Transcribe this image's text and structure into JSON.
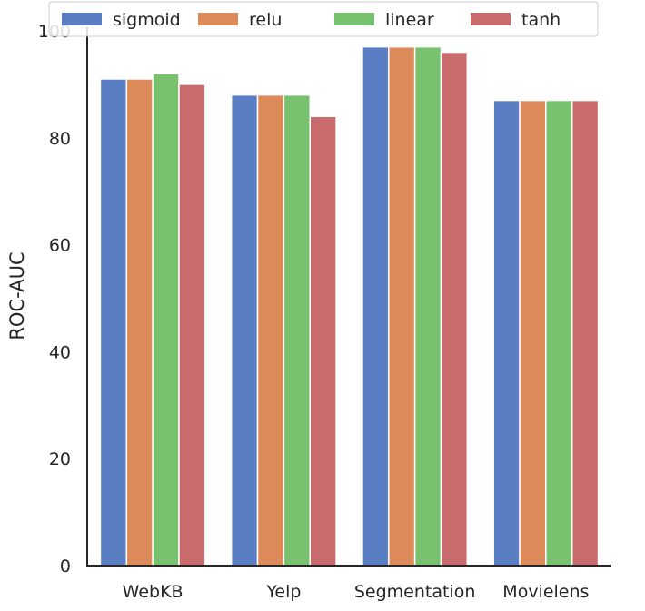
{
  "chart_data": {
    "type": "bar",
    "title": "",
    "xlabel": "",
    "ylabel": "ROC-AUC",
    "ylim": [
      0,
      100
    ],
    "yticks": [
      0,
      20,
      40,
      60,
      80,
      100
    ],
    "categories": [
      "WebKB",
      "Yelp",
      "Segmentation",
      "Movielens"
    ],
    "series": [
      {
        "name": "sigmoid",
        "color": "#5a7ec4",
        "values": [
          91,
          88,
          97,
          87
        ]
      },
      {
        "name": "relu",
        "color": "#dc8a5a",
        "values": [
          91,
          88,
          97,
          87
        ]
      },
      {
        "name": "linear",
        "color": "#77c16f",
        "values": [
          92,
          88,
          97,
          87
        ]
      },
      {
        "name": "tanh",
        "color": "#c96b6c",
        "values": [
          90,
          84,
          96,
          87
        ]
      }
    ],
    "grid": false,
    "legend_position": "top"
  }
}
